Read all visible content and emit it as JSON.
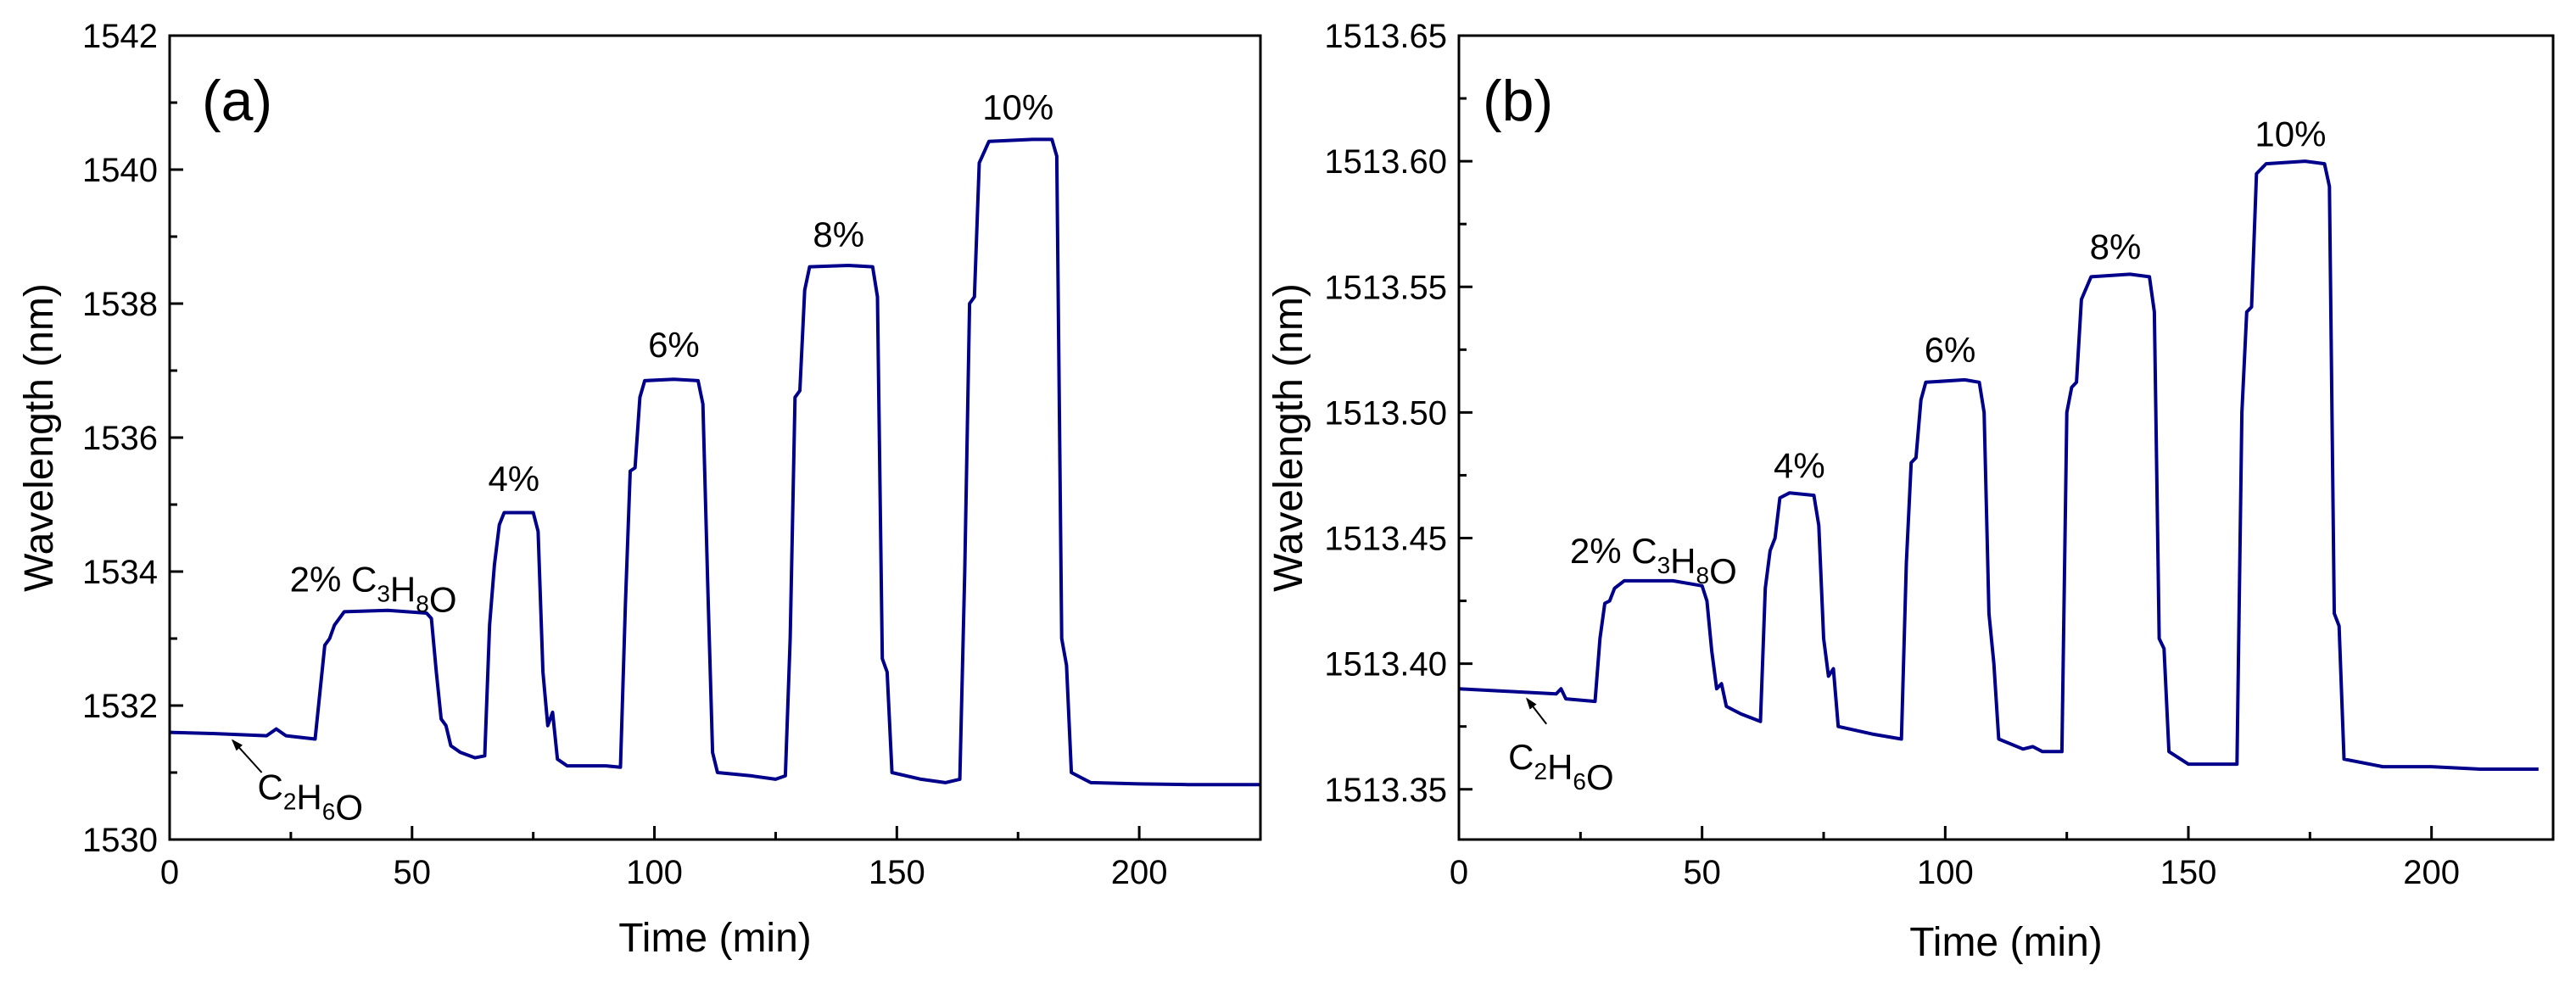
{
  "figure": {
    "colors": {
      "line": "#00008b",
      "axis": "#000000",
      "text": "#000000",
      "background": "#ffffff"
    }
  },
  "chart_data": [
    {
      "id": "a",
      "type": "line",
      "panel_label": "(a)",
      "title": "",
      "xlabel": "Time (min)",
      "ylabel": "Wavelength (nm)",
      "xlim": [
        0,
        225
      ],
      "ylim": [
        1530,
        1542
      ],
      "xticks": [
        0,
        50,
        100,
        150,
        200
      ],
      "xtick_labels": [
        "0",
        "50",
        "100",
        "150",
        "200"
      ],
      "yticks": [
        1530,
        1532,
        1534,
        1536,
        1538,
        1540,
        1542
      ],
      "ytick_labels": [
        "1530",
        "1532",
        "1534",
        "1536",
        "1538",
        "1540",
        "1542"
      ],
      "grid": false,
      "series": [
        {
          "name": "wavelength",
          "points": [
            [
              0,
              1531.6
            ],
            [
              10,
              1531.58
            ],
            [
              20,
              1531.55
            ],
            [
              22,
              1531.65
            ],
            [
              24,
              1531.55
            ],
            [
              30,
              1531.5
            ],
            [
              31,
              1532.2
            ],
            [
              32,
              1532.9
            ],
            [
              33,
              1533.0
            ],
            [
              34,
              1533.2
            ],
            [
              36,
              1533.4
            ],
            [
              45,
              1533.42
            ],
            [
              53,
              1533.38
            ],
            [
              54,
              1533.3
            ],
            [
              55,
              1532.5
            ],
            [
              56,
              1531.8
            ],
            [
              57,
              1531.7
            ],
            [
              58,
              1531.4
            ],
            [
              60,
              1531.3
            ],
            [
              63,
              1531.22
            ],
            [
              65,
              1531.25
            ],
            [
              66,
              1533.2
            ],
            [
              67,
              1534.1
            ],
            [
              68,
              1534.7
            ],
            [
              69,
              1534.88
            ],
            [
              75,
              1534.88
            ],
            [
              76,
              1534.6
            ],
            [
              77,
              1532.5
            ],
            [
              78,
              1531.7
            ],
            [
              79,
              1531.9
            ],
            [
              80,
              1531.2
            ],
            [
              82,
              1531.1
            ],
            [
              90,
              1531.1
            ],
            [
              93,
              1531.08
            ],
            [
              94,
              1533.5
            ],
            [
              95,
              1535.5
            ],
            [
              96,
              1535.55
            ],
            [
              97,
              1536.6
            ],
            [
              98,
              1536.85
            ],
            [
              104,
              1536.87
            ],
            [
              109,
              1536.85
            ],
            [
              110,
              1536.5
            ],
            [
              111,
              1533.8
            ],
            [
              112,
              1531.3
            ],
            [
              113,
              1531.0
            ],
            [
              120,
              1530.95
            ],
            [
              125,
              1530.9
            ],
            [
              127,
              1530.95
            ],
            [
              128,
              1533.0
            ],
            [
              129,
              1536.6
            ],
            [
              130,
              1536.7
            ],
            [
              131,
              1538.2
            ],
            [
              132,
              1538.55
            ],
            [
              140,
              1538.57
            ],
            [
              145,
              1538.55
            ],
            [
              146,
              1538.1
            ],
            [
              147,
              1532.7
            ],
            [
              148,
              1532.5
            ],
            [
              149,
              1531.0
            ],
            [
              155,
              1530.9
            ],
            [
              160,
              1530.85
            ],
            [
              163,
              1530.9
            ],
            [
              164,
              1534.0
            ],
            [
              165,
              1538.0
            ],
            [
              166,
              1538.1
            ],
            [
              167,
              1540.1
            ],
            [
              169,
              1540.42
            ],
            [
              178,
              1540.45
            ],
            [
              182,
              1540.45
            ],
            [
              183,
              1540.2
            ],
            [
              184,
              1533.0
            ],
            [
              185,
              1532.6
            ],
            [
              186,
              1531.0
            ],
            [
              190,
              1530.85
            ],
            [
              200,
              1530.83
            ],
            [
              210,
              1530.82
            ],
            [
              225,
              1530.82
            ]
          ]
        }
      ],
      "annotations": [
        {
          "id": "c3h8o",
          "parts": [
            [
              "2% C",
              ""
            ],
            [
              "3",
              "sub"
            ],
            [
              "H",
              ""
            ],
            [
              "8",
              "sub"
            ],
            [
              "O",
              ""
            ]
          ],
          "x": 42,
          "y": 1533.7
        },
        {
          "id": "p4",
          "text": "4%",
          "x": 71,
          "y": 1535.2
        },
        {
          "id": "p6",
          "text": "6%",
          "x": 104,
          "y": 1537.2
        },
        {
          "id": "p8",
          "text": "8%",
          "x": 138,
          "y": 1538.85
        },
        {
          "id": "p10",
          "text": "10%",
          "x": 175,
          "y": 1540.75
        },
        {
          "id": "c2h6o",
          "parts": [
            [
              "C",
              ""
            ],
            [
              "2",
              "sub"
            ],
            [
              "H",
              ""
            ],
            [
              "6",
              "sub"
            ],
            [
              "O",
              ""
            ]
          ],
          "x": 29,
          "y": 1530.6,
          "arrow_from": [
            19,
            1531.0
          ],
          "arrow_to": [
            13,
            1531.48
          ]
        }
      ]
    },
    {
      "id": "b",
      "type": "line",
      "panel_label": "(b)",
      "title": "",
      "xlabel": "Time (min)",
      "ylabel": "Wavelength (nm)",
      "xlim": [
        0,
        225
      ],
      "ylim": [
        1513.33,
        1513.65
      ],
      "xticks": [
        0,
        50,
        100,
        150,
        200
      ],
      "xtick_labels": [
        "0",
        "50",
        "100",
        "150",
        "200"
      ],
      "yticks": [
        1513.35,
        1513.4,
        1513.45,
        1513.5,
        1513.55,
        1513.6,
        1513.65
      ],
      "ytick_labels": [
        "1513.35",
        "1513.40",
        "1513.45",
        "1513.50",
        "1513.55",
        "1513.60",
        "1513.65"
      ],
      "grid": false,
      "series": [
        {
          "name": "wavelength",
          "points": [
            [
              0,
              1513.39
            ],
            [
              10,
              1513.389
            ],
            [
              20,
              1513.388
            ],
            [
              21,
              1513.39
            ],
            [
              22,
              1513.386
            ],
            [
              28,
              1513.385
            ],
            [
              29,
              1513.41
            ],
            [
              30,
              1513.424
            ],
            [
              31,
              1513.425
            ],
            [
              32,
              1513.43
            ],
            [
              34,
              1513.433
            ],
            [
              44,
              1513.433
            ],
            [
              50,
              1513.431
            ],
            [
              51,
              1513.425
            ],
            [
              52,
              1513.405
            ],
            [
              53,
              1513.39
            ],
            [
              54,
              1513.392
            ],
            [
              55,
              1513.383
            ],
            [
              58,
              1513.38
            ],
            [
              62,
              1513.377
            ],
            [
              63,
              1513.43
            ],
            [
              64,
              1513.445
            ],
            [
              65,
              1513.45
            ],
            [
              66,
              1513.466
            ],
            [
              68,
              1513.468
            ],
            [
              73,
              1513.467
            ],
            [
              74,
              1513.455
            ],
            [
              75,
              1513.41
            ],
            [
              76,
              1513.395
            ],
            [
              77,
              1513.398
            ],
            [
              78,
              1513.375
            ],
            [
              85,
              1513.372
            ],
            [
              91,
              1513.37
            ],
            [
              92,
              1513.44
            ],
            [
              93,
              1513.48
            ],
            [
              94,
              1513.482
            ],
            [
              95,
              1513.505
            ],
            [
              96,
              1513.512
            ],
            [
              104,
              1513.513
            ],
            [
              107,
              1513.512
            ],
            [
              108,
              1513.5
            ],
            [
              109,
              1513.42
            ],
            [
              110,
              1513.4
            ],
            [
              111,
              1513.37
            ],
            [
              116,
              1513.366
            ],
            [
              118,
              1513.367
            ],
            [
              120,
              1513.365
            ],
            [
              124,
              1513.365
            ],
            [
              125,
              1513.5
            ],
            [
              126,
              1513.51
            ],
            [
              127,
              1513.512
            ],
            [
              128,
              1513.545
            ],
            [
              130,
              1513.554
            ],
            [
              138,
              1513.555
            ],
            [
              142,
              1513.554
            ],
            [
              143,
              1513.54
            ],
            [
              144,
              1513.41
            ],
            [
              145,
              1513.406
            ],
            [
              146,
              1513.365
            ],
            [
              150,
              1513.36
            ],
            [
              160,
              1513.36
            ],
            [
              161,
              1513.5
            ],
            [
              162,
              1513.54
            ],
            [
              163,
              1513.542
            ],
            [
              164,
              1513.595
            ],
            [
              166,
              1513.599
            ],
            [
              174,
              1513.6
            ],
            [
              178,
              1513.599
            ],
            [
              179,
              1513.59
            ],
            [
              180,
              1513.42
            ],
            [
              181,
              1513.415
            ],
            [
              182,
              1513.362
            ],
            [
              190,
              1513.359
            ],
            [
              200,
              1513.359
            ],
            [
              210,
              1513.358
            ],
            [
              222,
              1513.358
            ]
          ]
        }
      ],
      "annotations": [
        {
          "id": "c3h8o",
          "parts": [
            [
              "2% C",
              ""
            ],
            [
              "3",
              "sub"
            ],
            [
              "H",
              ""
            ],
            [
              "8",
              "sub"
            ],
            [
              "O",
              ""
            ]
          ],
          "x": 40,
          "y": 1513.44
        },
        {
          "id": "p4",
          "text": "4%",
          "x": 70,
          "y": 1513.474
        },
        {
          "id": "p6",
          "text": "6%",
          "x": 101,
          "y": 1513.52
        },
        {
          "id": "p8",
          "text": "8%",
          "x": 135,
          "y": 1513.561
        },
        {
          "id": "p10",
          "text": "10%",
          "x": 171,
          "y": 1513.606
        },
        {
          "id": "c2h6o",
          "parts": [
            [
              "C",
              ""
            ],
            [
              "2",
              "sub"
            ],
            [
              "H",
              ""
            ],
            [
              "6",
              "sub"
            ],
            [
              "O",
              ""
            ]
          ],
          "x": 21,
          "y": 1513.358,
          "arrow_from": [
            18,
            1513.376
          ],
          "arrow_to": [
            14,
            1513.386
          ]
        }
      ]
    }
  ]
}
